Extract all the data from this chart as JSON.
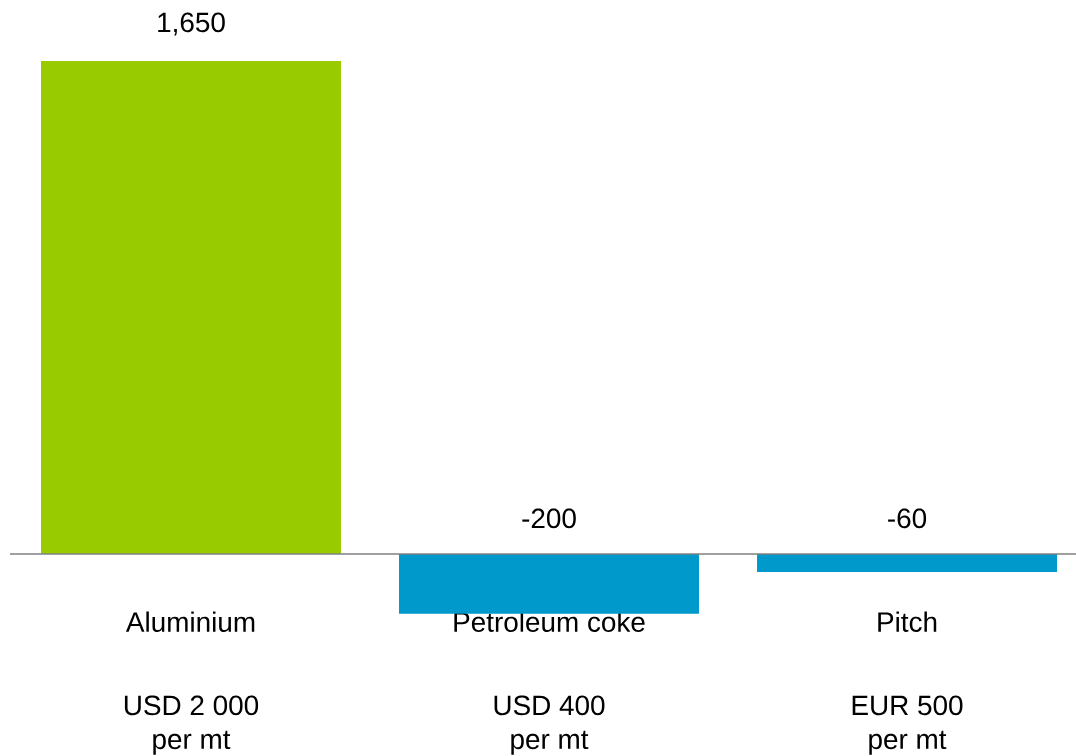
{
  "chart_data": {
    "type": "bar",
    "categories": [
      "Aluminium",
      "Petroleum coke",
      "Pitch"
    ],
    "values": [
      1650,
      -200,
      -60
    ],
    "colors": [
      "#99cc00",
      "#0099cc",
      "#0099cc"
    ],
    "value_labels": [
      "1,650",
      "-200",
      "-60"
    ],
    "annotations": [
      "USD 2 000 per mt",
      "USD 400 per mt",
      "EUR 500 per mt"
    ]
  }
}
